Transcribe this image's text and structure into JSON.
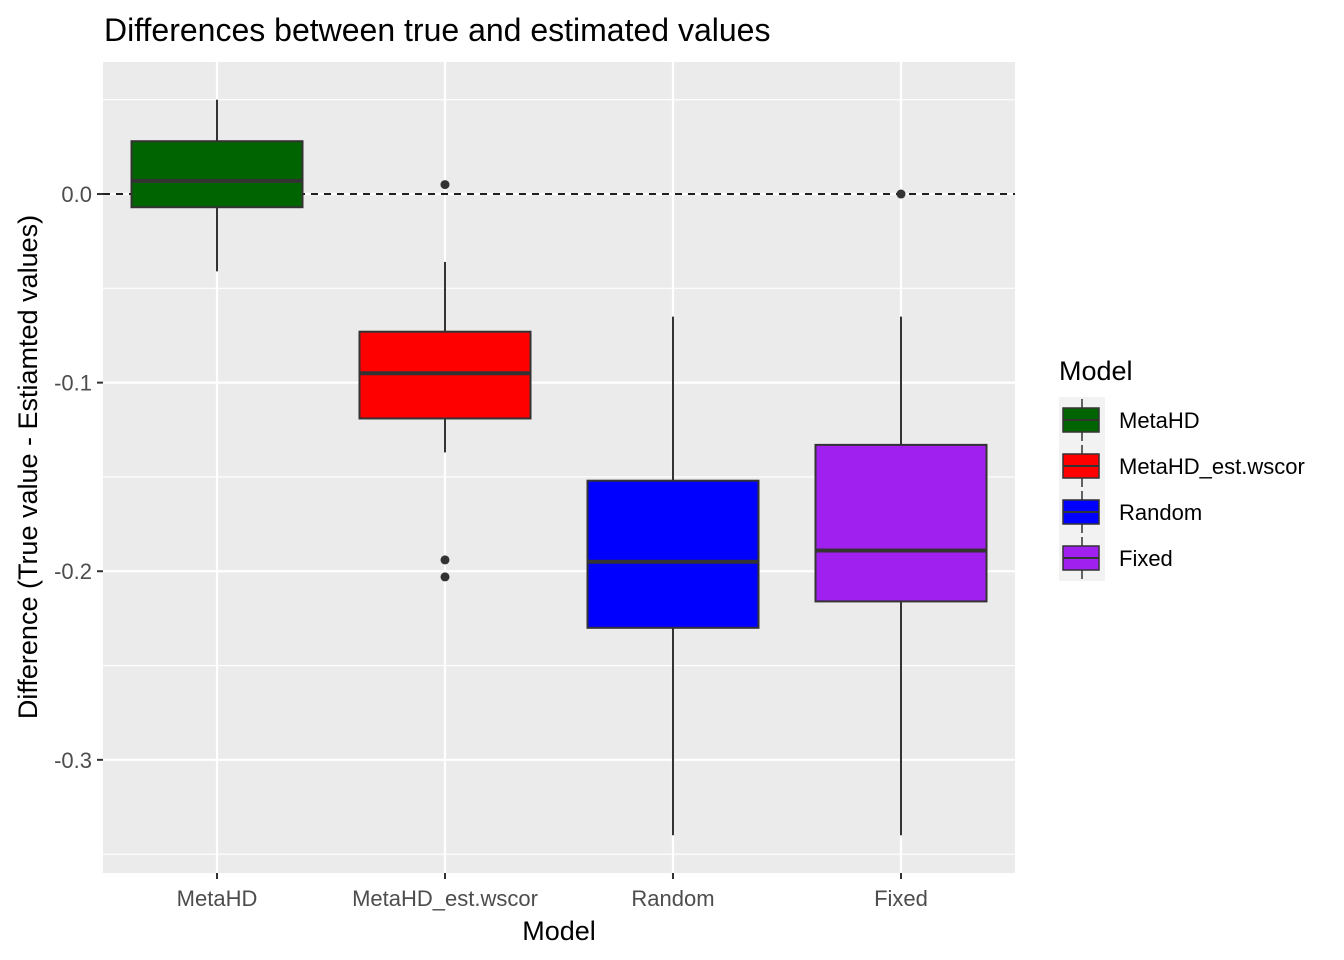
{
  "chart_data": {
    "type": "boxplot",
    "title": "Differences between true and estimated values",
    "xlabel": "Model",
    "ylabel": "Difference (True value - Estiamted values)",
    "ylim": [
      -0.36,
      0.07
    ],
    "y_ticks": [
      0.0,
      -0.1,
      -0.2,
      -0.3
    ],
    "y_tick_labels": [
      "0.0",
      "-0.1",
      "-0.2",
      "-0.3"
    ],
    "reference_line": {
      "y": 0.0,
      "style": "dashed"
    },
    "grid": true,
    "legend_position": "right",
    "legend_title": "Model",
    "categories": [
      "MetaHD",
      "MetaHD_est.wscor",
      "Random",
      "Fixed"
    ],
    "boxes": [
      {
        "name": "MetaHD",
        "color": "#006400",
        "whisker_low": -0.041,
        "q1": -0.007,
        "median": 0.007,
        "q3": 0.028,
        "whisker_high": 0.05,
        "outliers": []
      },
      {
        "name": "MetaHD_est.wscor",
        "color": "#ff0000",
        "whisker_low": -0.137,
        "q1": -0.119,
        "median": -0.095,
        "q3": -0.073,
        "whisker_high": -0.036,
        "outliers": [
          0.005,
          -0.194,
          -0.203
        ]
      },
      {
        "name": "Random",
        "color": "#0000ff",
        "whisker_low": -0.34,
        "q1": -0.23,
        "median": -0.195,
        "q3": -0.152,
        "whisker_high": -0.065,
        "outliers": []
      },
      {
        "name": "Fixed",
        "color": "#a020f0",
        "whisker_low": -0.34,
        "q1": -0.216,
        "median": -0.189,
        "q3": -0.133,
        "whisker_high": -0.065,
        "outliers": [
          0.0
        ]
      }
    ]
  }
}
